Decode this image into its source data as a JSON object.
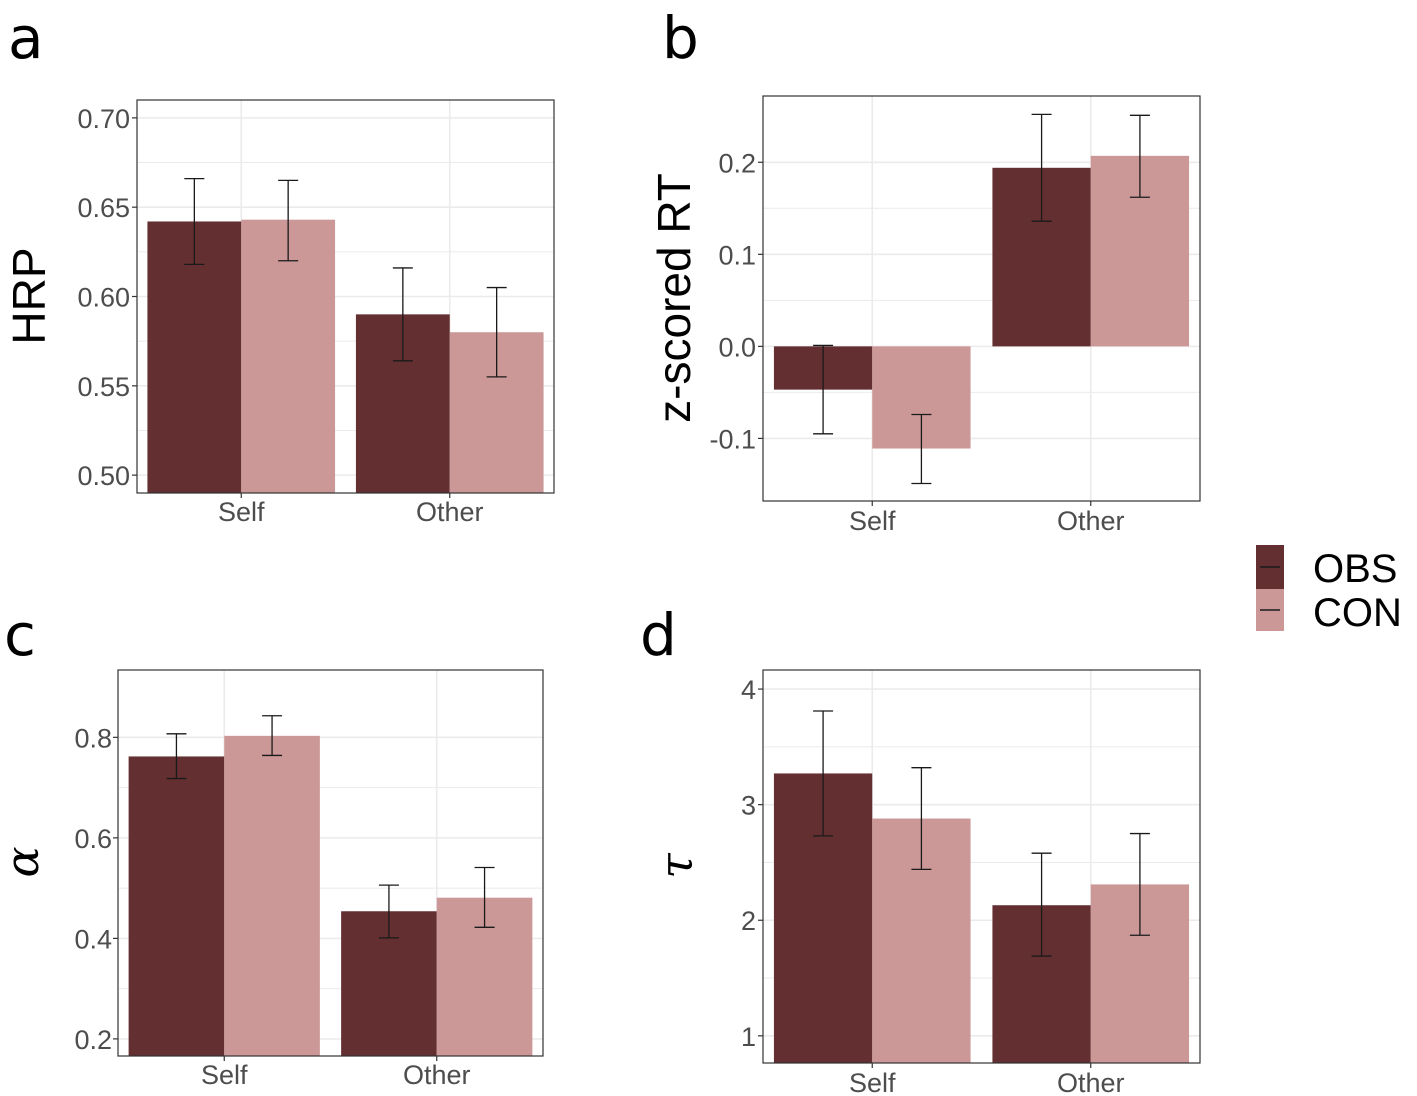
{
  "colors": {
    "OBS": "#642f30",
    "CON": "#cb9797",
    "grid": "#ebebeb",
    "frame": "#333333",
    "errorbar": "#1a1a1a"
  },
  "legend": {
    "items": [
      {
        "key": "OBS",
        "label": "OBS"
      },
      {
        "key": "CON",
        "label": "CON"
      }
    ]
  },
  "chart_data": [
    {
      "panel": "a",
      "type": "bar",
      "ylabel": "HRP",
      "ylabel_style": "text",
      "categories": [
        "Self",
        "Other"
      ],
      "series": [
        {
          "name": "OBS",
          "values": [
            0.642,
            0.59
          ],
          "err_low": [
            0.618,
            0.564
          ],
          "err_high": [
            0.666,
            0.616
          ]
        },
        {
          "name": "CON",
          "values": [
            0.643,
            0.58
          ],
          "err_low": [
            0.62,
            0.555
          ],
          "err_high": [
            0.665,
            0.605
          ]
        }
      ],
      "ylim": [
        0.49,
        0.71
      ],
      "bar_base": 0.49,
      "yticks": [
        0.5,
        0.55,
        0.6,
        0.65,
        0.7
      ],
      "ytick_labels": [
        "0.50",
        "0.55",
        "0.60",
        "0.65",
        "0.70"
      ]
    },
    {
      "panel": "b",
      "type": "bar",
      "ylabel": "z-scored RT",
      "ylabel_style": "text",
      "categories": [
        "Self",
        "Other"
      ],
      "series": [
        {
          "name": "OBS",
          "values": [
            -0.047,
            0.194
          ],
          "err_low": [
            -0.095,
            0.136
          ],
          "err_high": [
            0.001,
            0.252
          ]
        },
        {
          "name": "CON",
          "values": [
            -0.111,
            0.207
          ],
          "err_low": [
            -0.149,
            0.162
          ],
          "err_high": [
            -0.074,
            0.251
          ]
        }
      ],
      "ylim": [
        -0.168,
        0.272
      ],
      "bar_base": 0,
      "yticks": [
        -0.1,
        0.0,
        0.1,
        0.2
      ],
      "ytick_labels": [
        "-0.1",
        "0.0",
        "0.1",
        "0.2"
      ]
    },
    {
      "panel": "c",
      "type": "bar",
      "ylabel": "α",
      "ylabel_style": "greek",
      "categories": [
        "Self",
        "Other"
      ],
      "series": [
        {
          "name": "OBS",
          "values": [
            0.762,
            0.454
          ],
          "err_low": [
            0.718,
            0.401
          ],
          "err_high": [
            0.807,
            0.506
          ]
        },
        {
          "name": "CON",
          "values": [
            0.803,
            0.481
          ],
          "err_low": [
            0.764,
            0.422
          ],
          "err_high": [
            0.843,
            0.541
          ]
        }
      ],
      "ylim": [
        0.166,
        0.934
      ],
      "bar_base": 0.166,
      "yticks": [
        0.2,
        0.4,
        0.6,
        0.8
      ],
      "ytick_labels": [
        "0.2",
        "0.4",
        "0.6",
        "0.8"
      ]
    },
    {
      "panel": "d",
      "type": "bar",
      "ylabel": "τ",
      "ylabel_style": "greek",
      "categories": [
        "Self",
        "Other"
      ],
      "series": [
        {
          "name": "OBS",
          "values": [
            3.27,
            2.13
          ],
          "err_low": [
            2.73,
            1.69
          ],
          "err_high": [
            3.81,
            2.58
          ]
        },
        {
          "name": "CON",
          "values": [
            2.88,
            2.31
          ],
          "err_low": [
            2.44,
            1.87
          ],
          "err_high": [
            3.32,
            2.75
          ]
        }
      ],
      "ylim": [
        0.765,
        4.165
      ],
      "bar_base": 0.765,
      "yticks": [
        1,
        2,
        3,
        4
      ],
      "ytick_labels": [
        "1",
        "2",
        "3",
        "4"
      ]
    }
  ]
}
